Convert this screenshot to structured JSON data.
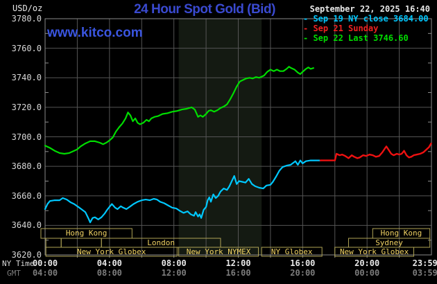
{
  "header": {
    "title": "24 Hour Spot Gold (Bid)",
    "unit_label": "USD/oz",
    "site_link": "www.kitco.com",
    "datetime": "September 22, 2025 16:40"
  },
  "legend": {
    "entries": [
      {
        "dash": "-",
        "text": "Sep 19 NY close 3684.00",
        "color": "#00c8ff"
      },
      {
        "dash": "-",
        "text": "Sep 21 Sunday",
        "color": "#ee2222"
      },
      {
        "dash": "-",
        "text": "Sep 22 Last 3746.60",
        "color": "#00dd00"
      }
    ]
  },
  "axis": {
    "ny_row_label": "NY Time",
    "gmt_row_label": "GMT",
    "y_ticks": [
      {
        "value": 3780,
        "label": "3780.0"
      },
      {
        "value": 3760,
        "label": "3760.0"
      },
      {
        "value": 3740,
        "label": "3740.0"
      },
      {
        "value": 3720,
        "label": "3720.0"
      },
      {
        "value": 3700,
        "label": "3700.0"
      },
      {
        "value": 3680,
        "label": "3680.0"
      },
      {
        "value": 3660,
        "label": "3660.0"
      },
      {
        "value": 3640,
        "label": "3640.0"
      },
      {
        "value": 3620,
        "label": "3620.0"
      }
    ],
    "x_ticks": [
      {
        "h": 0,
        "ny": "00:00",
        "gmt": "04:00"
      },
      {
        "h": 4,
        "ny": "04:00",
        "gmt": "08:00"
      },
      {
        "h": 8,
        "ny": "08:00",
        "gmt": "12:00"
      },
      {
        "h": 12,
        "ny": "12:00",
        "gmt": "16:00"
      },
      {
        "h": 16,
        "ny": "16:00",
        "gmt": "20:00"
      },
      {
        "h": 20,
        "ny": "20:00",
        "gmt": "00:00"
      },
      {
        "h": 23.6,
        "ny": "23:59",
        "gmt": "03:59"
      }
    ]
  },
  "colors": {
    "title_blue": "#3a4ad0",
    "kitco_blue": "#3a55e0",
    "grid": "#555555",
    "border": "#8a8a8a",
    "tick": "#909090",
    "axis_text": "#d8d8d8",
    "gmt_text": "#7d7d7d",
    "white_text": "#e8e8e8",
    "session_box": "#b0a455",
    "session_text": "#f0d263",
    "shade_band": "#141a12"
  },
  "chart_data": {
    "type": "line",
    "title": "24 Hour Spot Gold (Bid)",
    "xlabel": "NY Time (hours)",
    "ylabel": "USD/oz",
    "xlim": [
      0,
      24
    ],
    "ylim": [
      3620,
      3780
    ],
    "grid": true,
    "shaded_region_hours": [
      8.3,
      13.45
    ],
    "series": [
      {
        "name": "Sep 22 (today)",
        "color": "#00dd00",
        "width": 2.2,
        "points": [
          [
            0,
            3694
          ],
          [
            0.3,
            3692.5
          ],
          [
            0.6,
            3690.5
          ],
          [
            0.9,
            3689
          ],
          [
            1.2,
            3688.5
          ],
          [
            1.5,
            3689
          ],
          [
            1.8,
            3690.5
          ],
          [
            2,
            3691.5
          ],
          [
            2.2,
            3693.5
          ],
          [
            2.5,
            3695.5
          ],
          [
            2.8,
            3697
          ],
          [
            3.1,
            3697
          ],
          [
            3.4,
            3696
          ],
          [
            3.6,
            3695
          ],
          [
            3.8,
            3696
          ],
          [
            4,
            3697.5
          ],
          [
            4.2,
            3699.5
          ],
          [
            4.4,
            3703.5
          ],
          [
            4.6,
            3706.5
          ],
          [
            4.8,
            3709
          ],
          [
            5,
            3712.5
          ],
          [
            5.15,
            3716.5
          ],
          [
            5.3,
            3714.5
          ],
          [
            5.45,
            3710.5
          ],
          [
            5.6,
            3712.5
          ],
          [
            5.75,
            3709.5
          ],
          [
            5.9,
            3708.5
          ],
          [
            6.1,
            3709.5
          ],
          [
            6.3,
            3711.5
          ],
          [
            6.45,
            3710.5
          ],
          [
            6.6,
            3712.5
          ],
          [
            6.8,
            3713.5
          ],
          [
            7,
            3714
          ],
          [
            7.3,
            3715.5
          ],
          [
            7.6,
            3716
          ],
          [
            7.9,
            3717
          ],
          [
            8.2,
            3717.5
          ],
          [
            8.5,
            3718.5
          ],
          [
            8.8,
            3719
          ],
          [
            9.1,
            3720
          ],
          [
            9.3,
            3718.5
          ],
          [
            9.5,
            3713.5
          ],
          [
            9.65,
            3714.5
          ],
          [
            9.8,
            3713.5
          ],
          [
            10,
            3715.5
          ],
          [
            10.15,
            3717.5
          ],
          [
            10.3,
            3718
          ],
          [
            10.5,
            3717
          ],
          [
            10.7,
            3718
          ],
          [
            10.9,
            3719.5
          ],
          [
            11.1,
            3720.5
          ],
          [
            11.3,
            3722
          ],
          [
            11.5,
            3725.5
          ],
          [
            11.7,
            3729.5
          ],
          [
            11.9,
            3734
          ],
          [
            12.1,
            3737.5
          ],
          [
            12.3,
            3738.5
          ],
          [
            12.5,
            3739.5
          ],
          [
            12.7,
            3740
          ],
          [
            12.9,
            3739.5
          ],
          [
            13.1,
            3740.5
          ],
          [
            13.3,
            3740
          ],
          [
            13.6,
            3741.5
          ],
          [
            13.8,
            3744
          ],
          [
            14,
            3745.5
          ],
          [
            14.2,
            3744.5
          ],
          [
            14.4,
            3745.5
          ],
          [
            14.6,
            3744.5
          ],
          [
            14.8,
            3744.5
          ],
          [
            15,
            3746
          ],
          [
            15.15,
            3747.5
          ],
          [
            15.3,
            3746.5
          ],
          [
            15.5,
            3745.5
          ],
          [
            15.7,
            3743.5
          ],
          [
            15.85,
            3742.5
          ],
          [
            16,
            3744
          ],
          [
            16.2,
            3746
          ],
          [
            16.35,
            3747
          ],
          [
            16.5,
            3746
          ],
          [
            16.67,
            3746.6
          ]
        ]
      },
      {
        "name": "Sep 19 NY close",
        "color": "#00c8ff",
        "width": 2.2,
        "points": [
          [
            0,
            3651
          ],
          [
            0.15,
            3654.5
          ],
          [
            0.3,
            3656.5
          ],
          [
            0.6,
            3657
          ],
          [
            0.9,
            3657
          ],
          [
            1.1,
            3658.5
          ],
          [
            1.35,
            3657.5
          ],
          [
            1.6,
            3655.5
          ],
          [
            1.8,
            3654.5
          ],
          [
            2,
            3653
          ],
          [
            2.25,
            3651
          ],
          [
            2.5,
            3649
          ],
          [
            2.7,
            3644.5
          ],
          [
            2.8,
            3642
          ],
          [
            2.95,
            3645
          ],
          [
            3.1,
            3645.5
          ],
          [
            3.3,
            3644
          ],
          [
            3.5,
            3645.5
          ],
          [
            3.7,
            3648
          ],
          [
            3.85,
            3650.5
          ],
          [
            4,
            3652.5
          ],
          [
            4.15,
            3654.5
          ],
          [
            4.35,
            3652
          ],
          [
            4.5,
            3651
          ],
          [
            4.7,
            3653
          ],
          [
            4.85,
            3652
          ],
          [
            5.05,
            3651
          ],
          [
            5.25,
            3652.5
          ],
          [
            5.5,
            3654.5
          ],
          [
            5.75,
            3656
          ],
          [
            6,
            3657
          ],
          [
            6.25,
            3657.5
          ],
          [
            6.5,
            3657
          ],
          [
            6.75,
            3658
          ],
          [
            6.95,
            3657.5
          ],
          [
            7.15,
            3656
          ],
          [
            7.4,
            3655
          ],
          [
            7.65,
            3653.5
          ],
          [
            7.9,
            3652
          ],
          [
            8.15,
            3651.5
          ],
          [
            8.35,
            3650
          ],
          [
            8.6,
            3648.5
          ],
          [
            8.85,
            3649.5
          ],
          [
            9.05,
            3647.5
          ],
          [
            9.25,
            3646.5
          ],
          [
            9.35,
            3649
          ],
          [
            9.5,
            3646
          ],
          [
            9.6,
            3647.5
          ],
          [
            9.7,
            3645
          ],
          [
            9.85,
            3650.5
          ],
          [
            10,
            3652.5
          ],
          [
            10.1,
            3657
          ],
          [
            10.2,
            3659
          ],
          [
            10.3,
            3656
          ],
          [
            10.45,
            3661
          ],
          [
            10.6,
            3658.5
          ],
          [
            10.75,
            3660
          ],
          [
            10.9,
            3663
          ],
          [
            11.1,
            3665
          ],
          [
            11.3,
            3664
          ],
          [
            11.45,
            3666.5
          ],
          [
            11.6,
            3670
          ],
          [
            11.75,
            3673.5
          ],
          [
            11.9,
            3668
          ],
          [
            12.05,
            3670
          ],
          [
            12.25,
            3669.5
          ],
          [
            12.45,
            3669
          ],
          [
            12.65,
            3671.5
          ],
          [
            12.85,
            3668
          ],
          [
            13.05,
            3666.5
          ],
          [
            13.3,
            3665.5
          ],
          [
            13.55,
            3665
          ],
          [
            13.75,
            3667
          ],
          [
            14,
            3667.5
          ],
          [
            14.15,
            3669.5
          ],
          [
            14.35,
            3673
          ],
          [
            14.55,
            3677
          ],
          [
            14.75,
            3679.5
          ],
          [
            15,
            3680.5
          ],
          [
            15.25,
            3681
          ],
          [
            15.55,
            3683.5
          ],
          [
            15.7,
            3681
          ],
          [
            15.85,
            3684
          ],
          [
            16,
            3682
          ],
          [
            16.2,
            3683.5
          ],
          [
            16.5,
            3684
          ],
          [
            16.8,
            3684
          ],
          [
            17.1,
            3684
          ]
        ]
      },
      {
        "name": "Sep 21 Sunday",
        "color": "#ee1111",
        "width": 2.4,
        "points": [
          [
            17.1,
            3684
          ],
          [
            18,
            3684
          ],
          [
            18.1,
            3688.5
          ],
          [
            18.3,
            3687.5
          ],
          [
            18.45,
            3688
          ],
          [
            18.65,
            3687
          ],
          [
            18.85,
            3685.5
          ],
          [
            19.05,
            3687.5
          ],
          [
            19.2,
            3686.5
          ],
          [
            19.4,
            3685.5
          ],
          [
            19.55,
            3686
          ],
          [
            19.75,
            3687.5
          ],
          [
            19.95,
            3687
          ],
          [
            20.15,
            3688
          ],
          [
            20.35,
            3687.5
          ],
          [
            20.55,
            3686.5
          ],
          [
            20.75,
            3687
          ],
          [
            20.95,
            3689.5
          ],
          [
            21.1,
            3692
          ],
          [
            21.2,
            3693.5
          ],
          [
            21.35,
            3691
          ],
          [
            21.5,
            3688.5
          ],
          [
            21.65,
            3687.5
          ],
          [
            21.85,
            3688.5
          ],
          [
            22,
            3688
          ],
          [
            22.15,
            3688.5
          ],
          [
            22.3,
            3690.5
          ],
          [
            22.45,
            3687.5
          ],
          [
            22.6,
            3686
          ],
          [
            22.75,
            3686.5
          ],
          [
            22.9,
            3687.5
          ],
          [
            23.1,
            3688
          ],
          [
            23.3,
            3688.5
          ],
          [
            23.5,
            3689.5
          ],
          [
            23.7,
            3691.5
          ],
          [
            23.85,
            3693
          ],
          [
            23.98,
            3695.5
          ]
        ]
      }
    ],
    "sessions": [
      {
        "label": "Hong Kong",
        "row": 1,
        "start": -0.26,
        "end": 5.4
      },
      {
        "label": "Hong Kong",
        "row": 1,
        "start": 20.35,
        "end": 23.9
      },
      {
        "label": "",
        "row": 2,
        "start": 0.05,
        "end": 1.0
      },
      {
        "label": "",
        "row": 2,
        "start": 1.0,
        "end": 3.5
      },
      {
        "label": "London",
        "row": 2,
        "start": 3.5,
        "end": 10.9
      },
      {
        "label": "Sydney",
        "row": 2,
        "start": 18.85,
        "end": 23.9
      },
      {
        "label": "New York Globex",
        "row": 3,
        "start": 0.05,
        "end": 8.2
      },
      {
        "label": "New York NYMEX",
        "row": 3,
        "start": 8.3,
        "end": 13.25
      },
      {
        "label": "NY Globex",
        "row": 3,
        "start": 13.45,
        "end": 17.2
      },
      {
        "label": "New York Globex",
        "row": 3,
        "start": 18.0,
        "end": 22.9
      }
    ]
  }
}
